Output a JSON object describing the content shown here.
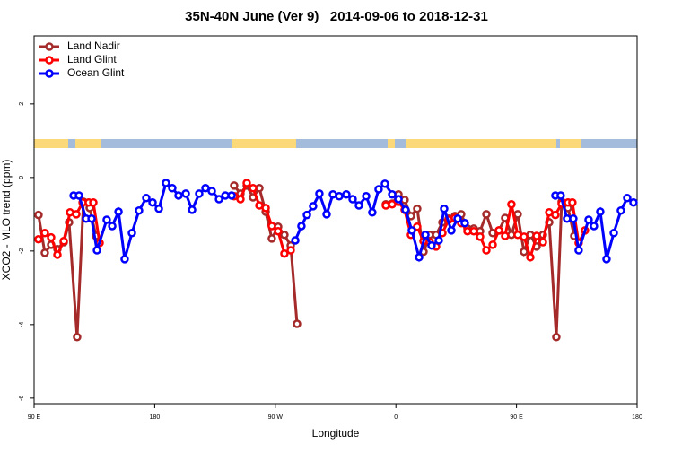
{
  "chart_data": {
    "type": "line",
    "title": "35N-40N June (Ver 9)   2014-09-06 to 2018-12-31",
    "x_label": "Longitude",
    "y_label": "XCO2 - MLO trend (ppm)",
    "xlim": [
      90,
      540
    ],
    "xticks": [
      {
        "value": 90,
        "label": "90 E"
      },
      180,
      {
        "value": 270,
        "label": "90 W"
      },
      {
        "value": 360,
        "label": "0"
      },
      {
        "value": 450,
        "label": "90 E"
      },
      {
        "value": 540,
        "label": "180"
      }
    ],
    "ylim": [
      -6.15,
      3.85
    ],
    "yticks": [
      -6,
      -4,
      -2,
      0,
      2
    ],
    "legend": "topleft",
    "series": [
      {
        "name": "Land Nadir",
        "color": "#a52a2a",
        "x": [
          93.3,
          98.0,
          102.7,
          107.4,
          112.1,
          116.1,
          122.1,
          126.8,
          131.5,
          136.2,
          null,
          239.3,
          244.0,
          248.7,
          253.4,
          258.1,
          262.8,
          267.4,
          272.1,
          276.8,
          281.5,
          286.2,
          null,
          352.5,
          357.2,
          361.9,
          366.5,
          371.2,
          375.9,
          380.6,
          385.3,
          390.0,
          394.7,
          399.4,
          404.0,
          408.7,
          413.4,
          418.1,
          422.8,
          427.5,
          432.2,
          436.9,
          441.5,
          446.2,
          450.9,
          455.6,
          460.3,
          465.0,
          469.7,
          474.4,
          479.7,
          483.7,
          488.4,
          493.1
        ],
        "values": [
          -1.02,
          -2.05,
          -1.83,
          -1.95,
          -1.76,
          -1.22,
          -4.34,
          -0.66,
          -0.83,
          -1.59,
          null,
          -0.22,
          -0.44,
          -0.22,
          -0.54,
          -0.29,
          -0.93,
          -1.66,
          -1.34,
          -1.56,
          -1.85,
          -3.98,
          null,
          -0.73,
          -0.71,
          -0.46,
          -0.61,
          -1.05,
          -0.85,
          -2.02,
          -1.56,
          -1.56,
          -1.22,
          -1.12,
          -1.05,
          -1.0,
          -1.39,
          -1.39,
          -1.46,
          -1.0,
          -1.51,
          -1.44,
          -1.1,
          -1.56,
          -1.0,
          -2.02,
          -1.56,
          -1.88,
          -1.56,
          -1.22,
          -4.34,
          -0.66,
          -0.83,
          -1.59
        ]
      },
      {
        "name": "Land Glint",
        "color": "#ff0000",
        "x": [
          93.3,
          98.0,
          102.7,
          107.4,
          112.1,
          116.8,
          121.5,
          126.2,
          130.8,
          134.2,
          138.9,
          null,
          239.3,
          244.0,
          248.7,
          253.4,
          258.1,
          262.8,
          267.4,
          272.1,
          276.8,
          281.5,
          null,
          352.5,
          357.2,
          361.9,
          366.5,
          371.2,
          375.9,
          380.6,
          385.3,
          390.0,
          394.7,
          399.4,
          404.0,
          408.7,
          413.4,
          418.1,
          422.8,
          427.5,
          432.2,
          436.9,
          441.5,
          446.2,
          450.9,
          455.6,
          460.3,
          465.0,
          469.7,
          474.4,
          479.0,
          483.7,
          488.4,
          491.7,
          496.4,
          501.1
        ],
        "values": [
          -1.68,
          -1.51,
          -1.63,
          -2.1,
          -1.73,
          -0.95,
          -1.0,
          -0.68,
          -0.68,
          -0.68,
          -1.78,
          null,
          -0.51,
          -0.59,
          -0.15,
          -0.29,
          -0.76,
          -0.83,
          -1.32,
          -1.46,
          -2.07,
          -1.98,
          null,
          -0.76,
          -0.73,
          -0.66,
          -0.88,
          -1.56,
          -1.34,
          -1.73,
          -1.76,
          -1.88,
          -1.51,
          -1.15,
          -1.1,
          -1.24,
          -1.46,
          -1.46,
          -1.61,
          -1.98,
          -1.83,
          -1.44,
          -1.59,
          -0.73,
          -1.56,
          -1.61,
          -2.17,
          -1.59,
          -1.76,
          -0.95,
          -1.02,
          -0.71,
          -0.68,
          -0.68,
          -1.78,
          -1.44
        ]
      },
      {
        "name": "Ocean Glint",
        "color": "#0000ff",
        "x": [
          119.5,
          123.5,
          128.8,
          132.9,
          136.9,
          144.2,
          148.3,
          153.0,
          157.6,
          163.0,
          168.3,
          173.7,
          178.4,
          183.1,
          188.4,
          193.1,
          197.8,
          203.2,
          207.9,
          213.2,
          217.9,
          222.6,
          228.0,
          232.7,
          237.4,
          null,
          284.9,
          289.5,
          293.6,
          298.2,
          302.9,
          308.3,
          313.0,
          317.7,
          323.0,
          327.7,
          332.4,
          337.8,
          342.4,
          347.1,
          351.8,
          357.2,
          361.9,
          367.2,
          371.9,
          377.3,
          382.0,
          386.6,
          392.0,
          396.0,
          401.4,
          406.1,
          411.4,
          null,
          479.0,
          483.0,
          487.7,
          492.4,
          496.4,
          503.8,
          507.8,
          512.5,
          517.2,
          522.6,
          527.9,
          532.6,
          537.3
        ],
        "values": [
          -0.49,
          -0.49,
          -1.12,
          -1.12,
          -1.98,
          -1.15,
          -1.32,
          -0.93,
          -2.22,
          -1.51,
          -0.9,
          -0.56,
          -0.68,
          -0.85,
          -0.15,
          -0.29,
          -0.49,
          -0.44,
          -0.88,
          -0.44,
          -0.29,
          -0.37,
          -0.59,
          -0.49,
          -0.49,
          null,
          -1.71,
          -1.32,
          -1.02,
          -0.78,
          -0.44,
          -1.0,
          -0.46,
          -0.51,
          -0.46,
          -0.59,
          -0.76,
          -0.51,
          -0.95,
          -0.32,
          -0.17,
          -0.46,
          -0.59,
          -0.88,
          -1.44,
          -2.17,
          -1.56,
          -1.85,
          -1.71,
          -0.85,
          -1.44,
          -1.12,
          -1.24,
          null,
          -0.49,
          -0.49,
          -1.12,
          -1.12,
          -1.98,
          -1.15,
          -1.32,
          -0.93,
          -2.22,
          -1.51,
          -0.9,
          -0.56,
          -0.68
        ]
      }
    ]
  }
}
